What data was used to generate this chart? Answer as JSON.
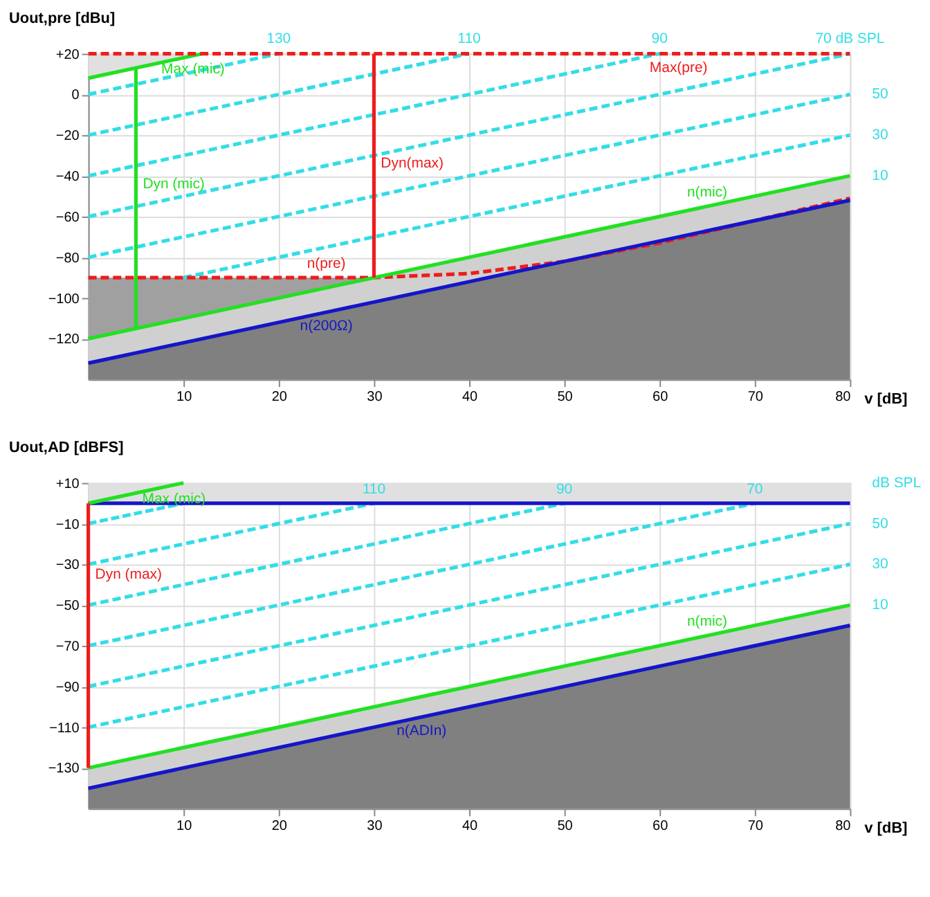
{
  "chart_data": [
    {
      "type": "line",
      "ylabel": "Uout,pre [dBu]",
      "xlabel": "v [dB]",
      "xlim": [
        0,
        80
      ],
      "xticks": [
        10,
        20,
        30,
        40,
        50,
        60,
        70,
        80
      ],
      "ylim": [
        -140,
        20
      ],
      "yticks": [
        {
          "value": 20,
          "label": "+20"
        },
        0,
        -20,
        -40,
        -60,
        -80,
        -100,
        -120
      ],
      "grid": true,
      "series": [
        {
          "color": "#33dde6",
          "line_style": "dashed",
          "x": [
            0,
            20
          ],
          "values": [
            0,
            20
          ]
        },
        {
          "color": "#33dde6",
          "line_style": "dashed",
          "x": [
            0,
            40
          ],
          "values": [
            -20,
            20
          ]
        },
        {
          "color": "#33dde6",
          "line_style": "dashed",
          "x": [
            0,
            60
          ],
          "values": [
            -40,
            20
          ]
        },
        {
          "color": "#33dde6",
          "line_style": "dashed",
          "x": [
            0,
            80
          ],
          "values": [
            -60,
            20
          ]
        },
        {
          "color": "#33dde6",
          "line_style": "dashed",
          "x": [
            0,
            80
          ],
          "values": [
            -80,
            0
          ]
        },
        {
          "color": "#33dde6",
          "line_style": "dashed",
          "x": [
            10,
            80
          ],
          "values": [
            -90,
            -20
          ]
        },
        {
          "color": "#22e022",
          "x": [
            0,
            12
          ],
          "values": [
            8,
            20
          ],
          "lower": [
            8,
            20
          ],
          "upper": [
            20,
            20
          ]
        },
        {
          "color": "#ee1c1c",
          "line_style": "dashed",
          "x": [
            0,
            80
          ],
          "values": [
            20,
            20
          ]
        },
        {
          "color": "#ee1c1c",
          "line_style": "dashed",
          "x": [
            0,
            30,
            40,
            50,
            60,
            70,
            80
          ],
          "values": [
            -90,
            -90,
            -88,
            -82,
            -73,
            -62,
            -51
          ],
          "lower": [
            -120,
            -90,
            -88,
            -82,
            -73,
            -62,
            -51
          ],
          "upper": [
            -90,
            -90,
            -88,
            -82,
            -73,
            -62,
            -51
          ]
        },
        {
          "color": "#22e022",
          "x": [
            0,
            80
          ],
          "values": [
            -120,
            -40
          ],
          "lower": [
            -132,
            -52
          ],
          "upper": [
            -120,
            -40
          ]
        },
        {
          "color": "#22e022",
          "x": [
            5,
            5
          ],
          "values": [
            -115,
            13
          ]
        },
        {
          "color": "#ee1c1c",
          "x": [
            30,
            30
          ],
          "values": [
            -90,
            20
          ]
        },
        {
          "color": "#1515c8",
          "x": [
            0,
            80
          ],
          "values": [
            -132,
            -52
          ],
          "lower": [
            -140,
            -140
          ],
          "upper": [
            -132,
            -52
          ]
        }
      ],
      "annotations": [
        {
          "text": "Max (mic)",
          "x": 11,
          "y": 19
        },
        {
          "text": "Dyn (mic)",
          "x": 5,
          "y": -44
        },
        {
          "text": "Dyn(max)",
          "x": 30,
          "y": -34
        },
        {
          "text": "n(pre)",
          "x": 25,
          "y": -90
        },
        {
          "text": "n(200Ω)",
          "x": 25,
          "y": -107
        },
        {
          "text": "Max(pre)",
          "x": 62,
          "y": 20
        },
        {
          "text": "n(mic)",
          "x": 65,
          "y": -55
        },
        {
          "text": "130",
          "x": 20,
          "y": 20
        },
        {
          "text": "110",
          "x": 40,
          "y": 20
        },
        {
          "text": "90",
          "x": 60,
          "y": 20
        },
        {
          "text": "70 dB SPL",
          "x": 80,
          "y": 20
        },
        {
          "text": "50",
          "x": 80,
          "y": 0
        },
        {
          "text": "30",
          "x": 80,
          "y": -20
        },
        {
          "text": "10",
          "x": 80,
          "y": -40
        }
      ]
    },
    {
      "type": "line",
      "ylabel": "Uout,AD [dBFS]",
      "xlabel": "v [dB]",
      "xlim": [
        0,
        80
      ],
      "xticks": [
        10,
        20,
        30,
        40,
        50,
        60,
        70,
        80
      ],
      "ylim": [
        -150,
        10
      ],
      "yticks": [
        {
          "value": 10,
          "label": "+10"
        },
        -10,
        -30,
        -50,
        -70,
        -90,
        -110,
        -130
      ],
      "grid": true,
      "bands": [
        {
          "axis": "y",
          "from": 0,
          "to": 10,
          "color": "#e0e0e0"
        }
      ],
      "series": [
        {
          "color": "#33dde6",
          "line_style": "dashed",
          "x": [
            0,
            10
          ],
          "values": [
            -10,
            0
          ]
        },
        {
          "color": "#33dde6",
          "line_style": "dashed",
          "x": [
            0,
            30
          ],
          "values": [
            -30,
            0
          ]
        },
        {
          "color": "#33dde6",
          "line_style": "dashed",
          "x": [
            0,
            50
          ],
          "values": [
            -50,
            0
          ]
        },
        {
          "color": "#33dde6",
          "line_style": "dashed",
          "x": [
            0,
            70
          ],
          "values": [
            -70,
            0
          ]
        },
        {
          "color": "#33dde6",
          "line_style": "dashed",
          "x": [
            0,
            80
          ],
          "values": [
            -90,
            -10
          ]
        },
        {
          "color": "#33dde6",
          "line_style": "dashed",
          "x": [
            0,
            80
          ],
          "values": [
            -110,
            -30
          ]
        },
        {
          "color": "#1515c8",
          "x": [
            0,
            80
          ],
          "values": [
            0,
            0
          ]
        },
        {
          "color": "#22e022",
          "x": [
            0,
            10
          ],
          "values": [
            0,
            10
          ]
        },
        {
          "color": "#22e022",
          "x": [
            0,
            80
          ],
          "values": [
            -130,
            -50
          ],
          "lower": [
            -140,
            -60
          ],
          "upper": [
            -130,
            -50
          ]
        },
        {
          "color": "#1515c8",
          "x": [
            0,
            80
          ],
          "values": [
            -140,
            -60
          ],
          "lower": [
            -150,
            -150
          ],
          "upper": [
            -140,
            -60
          ]
        },
        {
          "color": "#ee1c1c",
          "x": [
            0,
            0
          ],
          "values": [
            -130,
            0
          ]
        }
      ],
      "annotations": [
        {
          "text": "Max (mic)",
          "x": 9,
          "y": 9
        },
        {
          "text": "110",
          "x": 30,
          "y": 0
        },
        {
          "text": "90",
          "x": 50,
          "y": 0
        },
        {
          "text": "70",
          "x": 70,
          "y": 0
        },
        {
          "text": "Dyn (max)",
          "x": 0,
          "y": -35
        },
        {
          "text": "n(ADIn)",
          "x": 35,
          "y": -105
        },
        {
          "text": "n(mic)",
          "x": 65,
          "y": -65
        },
        {
          "text": "dB SPL",
          "x": 80,
          "y": 10
        },
        {
          "text": "50",
          "x": 80,
          "y": -10
        },
        {
          "text": "30",
          "x": 80,
          "y": -30
        },
        {
          "text": "10",
          "x": 80,
          "y": -50
        }
      ]
    }
  ]
}
